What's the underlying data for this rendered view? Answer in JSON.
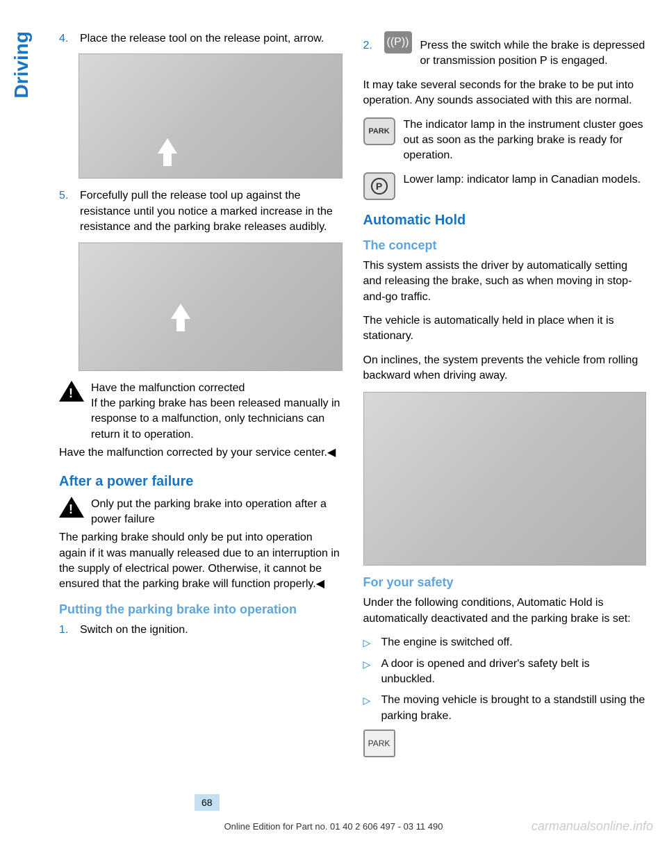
{
  "side_tab": "Driving",
  "left": {
    "item4_num": "4.",
    "item4": "Place the release tool on the release point, arrow.",
    "item5_num": "5.",
    "item5": "Forcefully pull the release tool up against the resistance until you notice a marked increase in the resistance and the parking brake releases audibly.",
    "warn1_title": "Have the malfunction corrected",
    "warn1_body": "If the parking brake has been released manually in response to a malfunction, only technicians can return it to operation.",
    "warn1_after": "Have the malfunction corrected by your service center.◀",
    "h_after": "After a power failure",
    "warn2_title": "Only put the parking brake into operation after a power failure",
    "warn2_body": "The parking brake should only be put into operation again if it was manually released due to an interruption in the supply of electrical power. Otherwise, it cannot be ensured that the parking brake will function properly.◀",
    "h_putting": "Putting the parking brake into operation",
    "item1_num": "1.",
    "item1": "Switch on the ignition."
  },
  "right": {
    "item2_num": "2.",
    "item2": "Press the switch while the brake is depressed or transmission position P is engaged.",
    "para1": "It may take several seconds for the brake to be put into operation. Any sounds associated with this are normal.",
    "park1": "The indicator lamp in the instrument cluster goes out as soon as the parking brake is ready for operation.",
    "park2": "Lower lamp: indicator lamp in Canadian models.",
    "h_auto": "Automatic Hold",
    "h_concept": "The concept",
    "concept1": "This system assists the driver by automatically setting and releasing the brake, such as when moving in stop-and-go traffic.",
    "concept2": "The vehicle is automatically held in place when it is stationary.",
    "concept3": "On inclines, the system prevents the vehicle from rolling backward when driving away.",
    "h_safety": "For your safety",
    "safety_intro": "Under the following conditions, Automatic Hold is automatically deactivated and the parking brake is set:",
    "b1": "The engine is switched off.",
    "b2": "A door is opened and driver's safety belt is unbuckled.",
    "b3": "The moving vehicle is brought to a standstill using the parking brake."
  },
  "icons": {
    "park": "PARK",
    "p_switch": "((P))",
    "circle_p": "P"
  },
  "page_number": "68",
  "footer": "Online Edition for Part no. 01 40 2 606 497 - 03 11 490",
  "watermark": "carmanualsonline.info",
  "colors": {
    "blue_primary": "#1874c4",
    "blue_light": "#5fa5dd",
    "page_bg": "#c5dff2"
  }
}
